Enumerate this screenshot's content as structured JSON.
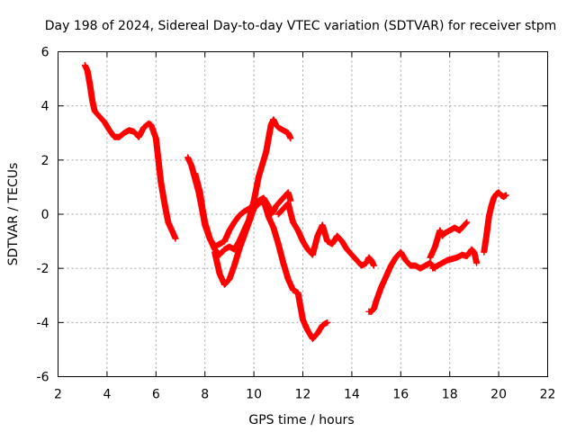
{
  "chart_data": {
    "type": "scatter",
    "title": "Day 198 of 2024, Sidereal Day-to-day VTEC variation (SDTVAR) for receiver stpm",
    "xlabel": "GPS time / hours",
    "ylabel": "SDTVAR / TECUs",
    "xlim": [
      2,
      22
    ],
    "ylim": [
      -6,
      6
    ],
    "xticks": [
      "2",
      "4",
      "6",
      "8",
      "10",
      "12",
      "14",
      "16",
      "18",
      "20",
      "22"
    ],
    "yticks": [
      "-6",
      "-4",
      "-2",
      "0",
      "2",
      "4",
      "6"
    ],
    "grid": true,
    "legend": "none",
    "marker": "plus",
    "color": "#ff0000",
    "tracks": [
      {
        "x": [
          3.1,
          3.2,
          3.3,
          3.4,
          3.5,
          3.7,
          3.9,
          4.1,
          4.3,
          4.5,
          4.7,
          4.9,
          5.1,
          5.3,
          5.5,
          5.7,
          5.8,
          6.0,
          6.1,
          6.2,
          6.35,
          6.5,
          6.65,
          6.8
        ],
        "y": [
          5.5,
          5.3,
          4.8,
          4.2,
          3.8,
          3.6,
          3.4,
          3.1,
          2.85,
          2.85,
          3.0,
          3.1,
          3.05,
          2.85,
          3.2,
          3.35,
          3.3,
          2.8,
          2.0,
          1.2,
          0.4,
          -0.3,
          -0.6,
          -0.9
        ]
      },
      {
        "x": [
          7.3,
          7.45,
          7.6,
          7.75,
          7.9,
          8.0,
          8.2,
          8.4,
          8.6,
          8.8,
          9.0,
          9.2,
          9.4,
          9.6,
          9.8,
          10.0,
          10.2,
          10.4,
          10.6,
          10.7,
          10.8,
          10.9,
          11.0,
          11.2,
          11.4,
          11.5
        ],
        "y": [
          2.1,
          1.8,
          1.3,
          0.8,
          0.1,
          -0.4,
          -0.9,
          -1.2,
          -1.1,
          -1.0,
          -0.6,
          -0.3,
          -0.05,
          0.1,
          0.2,
          0.35,
          0.5,
          0.6,
          0.3,
          0.0,
          0.1,
          0.3,
          0.4,
          0.6,
          0.8,
          0.5
        ]
      },
      {
        "x": [
          7.6,
          7.8,
          7.9,
          8.0,
          8.2,
          8.4,
          8.6,
          8.8,
          9.0,
          9.2,
          9.4,
          9.6,
          9.8,
          10.0,
          10.2,
          10.4,
          10.5,
          10.6,
          10.7,
          10.8,
          10.9,
          11.0,
          11.2,
          11.4,
          11.5
        ],
        "y": [
          1.5,
          0.8,
          0.2,
          -0.3,
          -0.9,
          -1.3,
          -1.5,
          -1.3,
          -1.2,
          -1.3,
          -1.0,
          -0.6,
          -0.2,
          0.5,
          1.4,
          2.0,
          2.3,
          2.8,
          3.3,
          3.5,
          3.3,
          3.2,
          3.1,
          3.0,
          2.8
        ]
      },
      {
        "x": [
          8.4,
          8.6,
          8.8,
          9.0,
          9.2,
          9.4,
          9.6,
          9.8,
          10.0,
          10.2,
          10.4,
          10.6,
          10.8,
          11.0,
          11.2,
          11.4,
          11.6,
          11.8,
          12.0,
          12.2,
          12.4,
          12.6,
          12.8,
          13.0
        ],
        "y": [
          -1.4,
          -2.2,
          -2.6,
          -2.4,
          -1.9,
          -1.3,
          -0.8,
          -0.3,
          0.2,
          0.4,
          0.5,
          -0.1,
          -0.5,
          -1.1,
          -1.8,
          -2.4,
          -2.8,
          -2.9,
          -3.9,
          -4.3,
          -4.6,
          -4.4,
          -4.1,
          -4.0
        ]
      },
      {
        "x": [
          11.0,
          11.2,
          11.4,
          11.6,
          11.8,
          12.0,
          12.2,
          12.4,
          12.6,
          12.8,
          13.0,
          13.2,
          13.4,
          13.6,
          13.8,
          14.0,
          14.2,
          14.4,
          14.6,
          14.7,
          14.8,
          14.9
        ],
        "y": [
          0.0,
          0.2,
          0.4,
          -0.3,
          -0.6,
          -1.0,
          -1.3,
          -1.5,
          -0.8,
          -0.4,
          -1.0,
          -1.1,
          -0.8,
          -1.0,
          -1.3,
          -1.5,
          -1.7,
          -1.9,
          -1.8,
          -1.6,
          -1.7,
          -1.9
        ]
      },
      {
        "x": [
          14.7,
          14.8,
          14.9,
          15.0,
          15.2,
          15.4,
          15.6,
          15.8,
          16.0,
          16.2,
          16.4,
          16.6,
          16.8,
          17.0,
          17.2,
          17.4
        ],
        "y": [
          -3.6,
          -3.6,
          -3.5,
          -3.2,
          -2.7,
          -2.3,
          -1.9,
          -1.6,
          -1.4,
          -1.7,
          -1.9,
          -1.9,
          -2.0,
          -1.9,
          -1.8,
          -2.0
        ]
      },
      {
        "x": [
          17.2,
          17.4,
          17.5,
          17.6,
          17.7,
          17.8,
          18.0,
          18.2,
          18.4,
          18.6,
          18.7
        ],
        "y": [
          -1.6,
          -1.2,
          -0.9,
          -0.6,
          -0.8,
          -0.7,
          -0.6,
          -0.5,
          -0.6,
          -0.4,
          -0.3
        ]
      },
      {
        "x": [
          17.3,
          17.5,
          17.7,
          17.9,
          18.1,
          18.3,
          18.5,
          18.7,
          18.9,
          19.0,
          19.1
        ],
        "y": [
          -2.0,
          -1.9,
          -1.8,
          -1.7,
          -1.65,
          -1.6,
          -1.5,
          -1.55,
          -1.3,
          -1.4,
          -1.8
        ]
      },
      {
        "x": [
          19.4,
          19.5,
          19.6,
          19.7,
          19.8,
          19.9,
          20.0,
          20.1,
          20.2,
          20.3
        ],
        "y": [
          -1.4,
          -0.8,
          -0.1,
          0.3,
          0.6,
          0.75,
          0.8,
          0.7,
          0.65,
          0.7
        ]
      }
    ]
  }
}
